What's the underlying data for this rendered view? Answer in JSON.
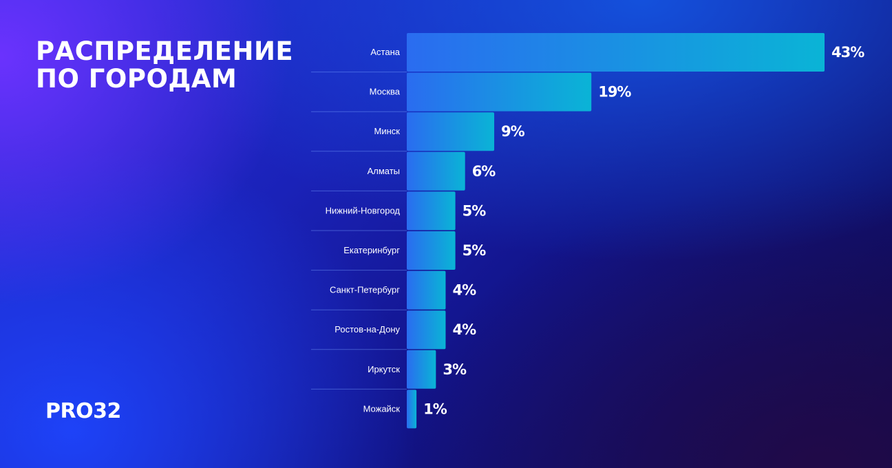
{
  "title": "РАСПРЕДЕЛЕНИЕ\nПО ГОРОДАМ",
  "logo": "PRO32",
  "colors": {
    "bar_start": "#2a6cf0",
    "bar_end": "#0ab4d6",
    "text": "#ffffff"
  },
  "chart_data": {
    "type": "bar",
    "orientation": "horizontal",
    "title": "РАСПРЕДЕЛЕНИЕ ПО ГОРОДАМ",
    "categories": [
      "Астана",
      "Москва",
      "Минск",
      "Алматы",
      "Нижний-Новгород",
      "Екатеринбург",
      "Санкт-Петербург",
      "Ростов-на-Дону",
      "Иркутск",
      "Можайск"
    ],
    "values": [
      43,
      19,
      9,
      6,
      5,
      5,
      4,
      4,
      3,
      1
    ],
    "value_labels": [
      "43%",
      "19%",
      "9%",
      "6%",
      "5%",
      "5%",
      "4%",
      "4%",
      "3%",
      "1%"
    ],
    "unit": "%",
    "xlabel": "",
    "ylabel": "",
    "grid": false,
    "legend": "none"
  }
}
